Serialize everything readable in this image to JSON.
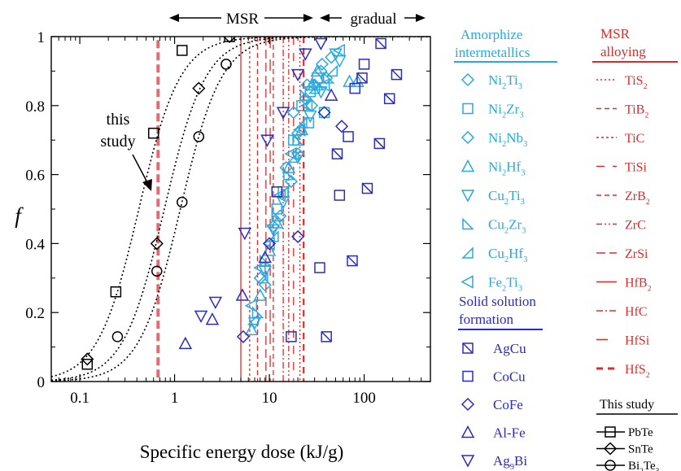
{
  "chart_data": {
    "type": "scatter",
    "xscale": "log",
    "xlim": [
      0.05,
      500
    ],
    "ylim": [
      0,
      1
    ],
    "xlabel": "Specific energy dose (kJ/g)",
    "ylabel": "f",
    "x_ticks": [
      0.1,
      1,
      10,
      100
    ],
    "x_tick_labels": [
      "0.1",
      "1",
      "10",
      "100"
    ],
    "y_ticks": [
      0,
      0.2,
      0.4,
      0.6,
      0.8,
      1
    ],
    "y_tick_labels": [
      "0",
      "0.2",
      "0.4",
      "0.6",
      "0.8",
      "1"
    ],
    "grid": false,
    "region_labels": {
      "msr": "MSR",
      "gradual": "gradual"
    },
    "annotation": {
      "line1": "this",
      "line2": "study"
    },
    "this_study_vline": 0.67,
    "colors": {
      "amorphize": "#29a9e0",
      "solid": "#2b2bbd",
      "msr": "#e02b2b",
      "study": "#000000"
    },
    "amorphize_intermetallics": {
      "title_line1": "Amorphize",
      "title_line2": "intermetallics",
      "series": [
        {
          "marker": "diamond",
          "label": {
            "a": "Ni",
            "as": "2",
            "b": "Ti",
            "bs": "3"
          },
          "points": [
            [
              24,
              0.82
            ],
            [
              30,
              0.86
            ],
            [
              35,
              0.9
            ],
            [
              20,
              0.72
            ],
            [
              15,
              0.62
            ],
            [
              18,
              0.78
            ],
            [
              40,
              0.88
            ],
            [
              11,
              0.45
            ],
            [
              8,
              0.3
            ],
            [
              28,
              0.8
            ]
          ]
        },
        {
          "marker": "square",
          "label": {
            "a": "Ni",
            "as": "2",
            "b": "Zr",
            "bs": "3"
          },
          "points": [
            [
              22,
              0.8
            ],
            [
              27,
              0.84
            ],
            [
              32,
              0.88
            ],
            [
              18,
              0.7
            ],
            [
              14,
              0.55
            ],
            [
              38,
              0.78
            ],
            [
              12,
              0.5
            ],
            [
              26,
              0.75
            ]
          ]
        },
        {
          "marker": "diamond",
          "label": {
            "a": "Ni",
            "as": "2",
            "b": "Nb",
            "bs": "3"
          },
          "points": [
            [
              25,
              0.86
            ],
            [
              36,
              0.92
            ],
            [
              45,
              0.94
            ],
            [
              20,
              0.66
            ],
            [
              17,
              0.58
            ],
            [
              13,
              0.48
            ],
            [
              9,
              0.28
            ]
          ]
        },
        {
          "marker": "triangle-up",
          "label": {
            "a": "Ni",
            "as": "2",
            "b": "Hf",
            "bs": "3"
          },
          "points": [
            [
              28,
              0.86
            ],
            [
              32,
              0.9
            ],
            [
              70,
              0.87
            ],
            [
              85,
              0.87
            ],
            [
              22,
              0.73
            ],
            [
              16,
              0.62
            ],
            [
              12,
              0.46
            ],
            [
              10,
              0.38
            ],
            [
              8,
              0.25
            ],
            [
              6.5,
              0.15
            ]
          ]
        },
        {
          "marker": "triangle-down",
          "label": {
            "a": "Cu",
            "as": "2",
            "b": "Ti",
            "bs": "3"
          },
          "points": [
            [
              35,
              0.84
            ],
            [
              50,
              0.95
            ],
            [
              55,
              0.93
            ],
            [
              27,
              0.77
            ],
            [
              20,
              0.65
            ],
            [
              14,
              0.52
            ],
            [
              11,
              0.44
            ],
            [
              9,
              0.32
            ],
            [
              7,
              0.17
            ]
          ]
        },
        {
          "marker": "triangle-br",
          "label": {
            "a": "Cu",
            "as": "2",
            "b": "Zr",
            "bs": "3"
          },
          "points": [
            [
              24,
              0.83
            ],
            [
              33,
              0.86
            ],
            [
              42,
              0.88
            ],
            [
              20,
              0.7
            ],
            [
              16,
              0.6
            ],
            [
              12,
              0.48
            ],
            [
              9,
              0.35
            ],
            [
              7.5,
              0.2
            ]
          ]
        },
        {
          "marker": "triangle-bl",
          "label": {
            "a": "Cu",
            "as": "2",
            "b": "Hf",
            "bs": "3"
          },
          "points": [
            [
              30,
              0.85
            ],
            [
              46,
              0.9
            ],
            [
              22,
              0.75
            ],
            [
              18,
              0.65
            ],
            [
              14,
              0.55
            ],
            [
              11,
              0.42
            ],
            [
              8.5,
              0.3
            ],
            [
              6.8,
              0.18
            ]
          ]
        },
        {
          "marker": "triangle-left",
          "label": {
            "a": "Fe",
            "as": "2",
            "b": "Ti",
            "bs": "3"
          },
          "points": [
            [
              25,
              0.8
            ],
            [
              38,
              0.86
            ],
            [
              55,
              0.96
            ],
            [
              21,
              0.73
            ],
            [
              17,
              0.66
            ],
            [
              13,
              0.54
            ],
            [
              10,
              0.4
            ],
            [
              8,
              0.33
            ],
            [
              6.5,
              0.22
            ]
          ]
        }
      ]
    },
    "solid_solution_formation": {
      "title_line1": "Solid solution",
      "title_line2": "formation",
      "series": [
        {
          "marker": "square-x",
          "label": "AgCu",
          "points": [
            [
              150,
              0.98
            ],
            [
              220,
              0.89
            ],
            [
              185,
              0.82
            ],
            [
              145,
              0.69
            ],
            [
              108,
              0.56
            ],
            [
              75,
              0.35
            ],
            [
              40,
              0.13
            ],
            [
              52,
              0.66
            ],
            [
              95,
              0.88
            ]
          ]
        },
        {
          "marker": "square",
          "label": "CoCu",
          "points": [
            [
              100,
              0.92
            ],
            [
              80,
              0.85
            ],
            [
              68,
              0.71
            ],
            [
              55,
              0.54
            ],
            [
              34,
              0.33
            ],
            [
              17,
              0.13
            ],
            [
              12,
              0.55
            ]
          ]
        },
        {
          "marker": "diamond",
          "label": "CoFe",
          "points": [
            [
              58,
              0.74
            ],
            [
              20,
              0.42
            ],
            [
              5.3,
              0.13
            ],
            [
              10,
              0.4
            ],
            [
              38,
              0.78
            ]
          ]
        },
        {
          "marker": "triangle-up",
          "label": "Al-Fe",
          "points": [
            [
              5.2,
              0.25
            ],
            [
              2.5,
              0.18
            ],
            [
              1.3,
              0.11
            ],
            [
              9,
              0.36
            ],
            [
              45,
              0.83
            ]
          ]
        },
        {
          "marker": "triangle-down",
          "label": {
            "a": "Ag",
            "as": "9",
            "b": "Bi",
            "bs": ""
          },
          "points": [
            [
              35,
              0.98
            ],
            [
              24,
              0.95
            ],
            [
              20,
              0.89
            ],
            [
              14,
              0.78
            ],
            [
              9.5,
              0.7
            ],
            [
              5.5,
              0.43
            ],
            [
              2.7,
              0.23
            ],
            [
              1.9,
              0.19
            ]
          ]
        }
      ]
    },
    "msr_alloying": {
      "title_line1": "MSR",
      "title_line2": "alloying",
      "series": [
        {
          "label": {
            "a": "TiS",
            "as": "2"
          },
          "x": 21,
          "dash": "dot"
        },
        {
          "label": {
            "a": "TiB",
            "as": "2"
          },
          "x": 7.5,
          "dash": "dash"
        },
        {
          "label": {
            "a": "TiC",
            "as": ""
          },
          "x": 6.2,
          "dash": "dense-dash"
        },
        {
          "label": {
            "a": "TiSi",
            "as": ""
          },
          "x": 18,
          "dash": "dash-gap"
        },
        {
          "label": {
            "a": "ZrB",
            "as": "2"
          },
          "x": 11,
          "dash": "dash"
        },
        {
          "label": {
            "a": "ZrC",
            "as": ""
          },
          "x": 16,
          "dash": "dash-dot-dot"
        },
        {
          "label": {
            "a": "ZrSi",
            "as": ""
          },
          "x": 9.2,
          "dash": "long-dash"
        },
        {
          "label": {
            "a": "HfB",
            "as": "2"
          },
          "x": 5,
          "dash": "solid"
        },
        {
          "label": {
            "a": "HfC",
            "as": ""
          },
          "x": 14,
          "dash": "dash-dot"
        },
        {
          "label": {
            "a": "HfSi",
            "as": ""
          },
          "x": 10.2,
          "dash": "long-gap"
        },
        {
          "label": {
            "a": "HfS",
            "as": "2"
          },
          "x": 23,
          "dash": "thick-dash"
        }
      ]
    },
    "this_study": {
      "title": "This study",
      "series": [
        {
          "marker": "square",
          "label": "PbTe",
          "points": [
            [
              0.12,
              0.05
            ],
            [
              0.24,
              0.26
            ],
            [
              0.6,
              0.72
            ],
            [
              1.2,
              0.96
            ],
            [
              3.8,
              1.0
            ]
          ],
          "curve": {
            "x0": 0.42,
            "w": 0.62
          }
        },
        {
          "marker": "diamond",
          "label": "SnTe",
          "points": [
            [
              0.12,
              0.065
            ],
            [
              0.65,
              0.4
            ],
            [
              1.8,
              0.85
            ],
            [
              3.8,
              1.0
            ]
          ],
          "curve": {
            "x0": 0.78,
            "w": 0.62
          }
        },
        {
          "marker": "circle",
          "label": {
            "a": "Bi",
            "as": "2",
            "b": "Te",
            "bs": "3"
          },
          "points": [
            [
              0.25,
              0.13
            ],
            [
              0.65,
              0.32
            ],
            [
              1.2,
              0.52
            ],
            [
              1.8,
              0.71
            ],
            [
              3.5,
              0.92
            ]
          ],
          "curve": {
            "x0": 1.15,
            "w": 0.62
          }
        }
      ]
    }
  }
}
